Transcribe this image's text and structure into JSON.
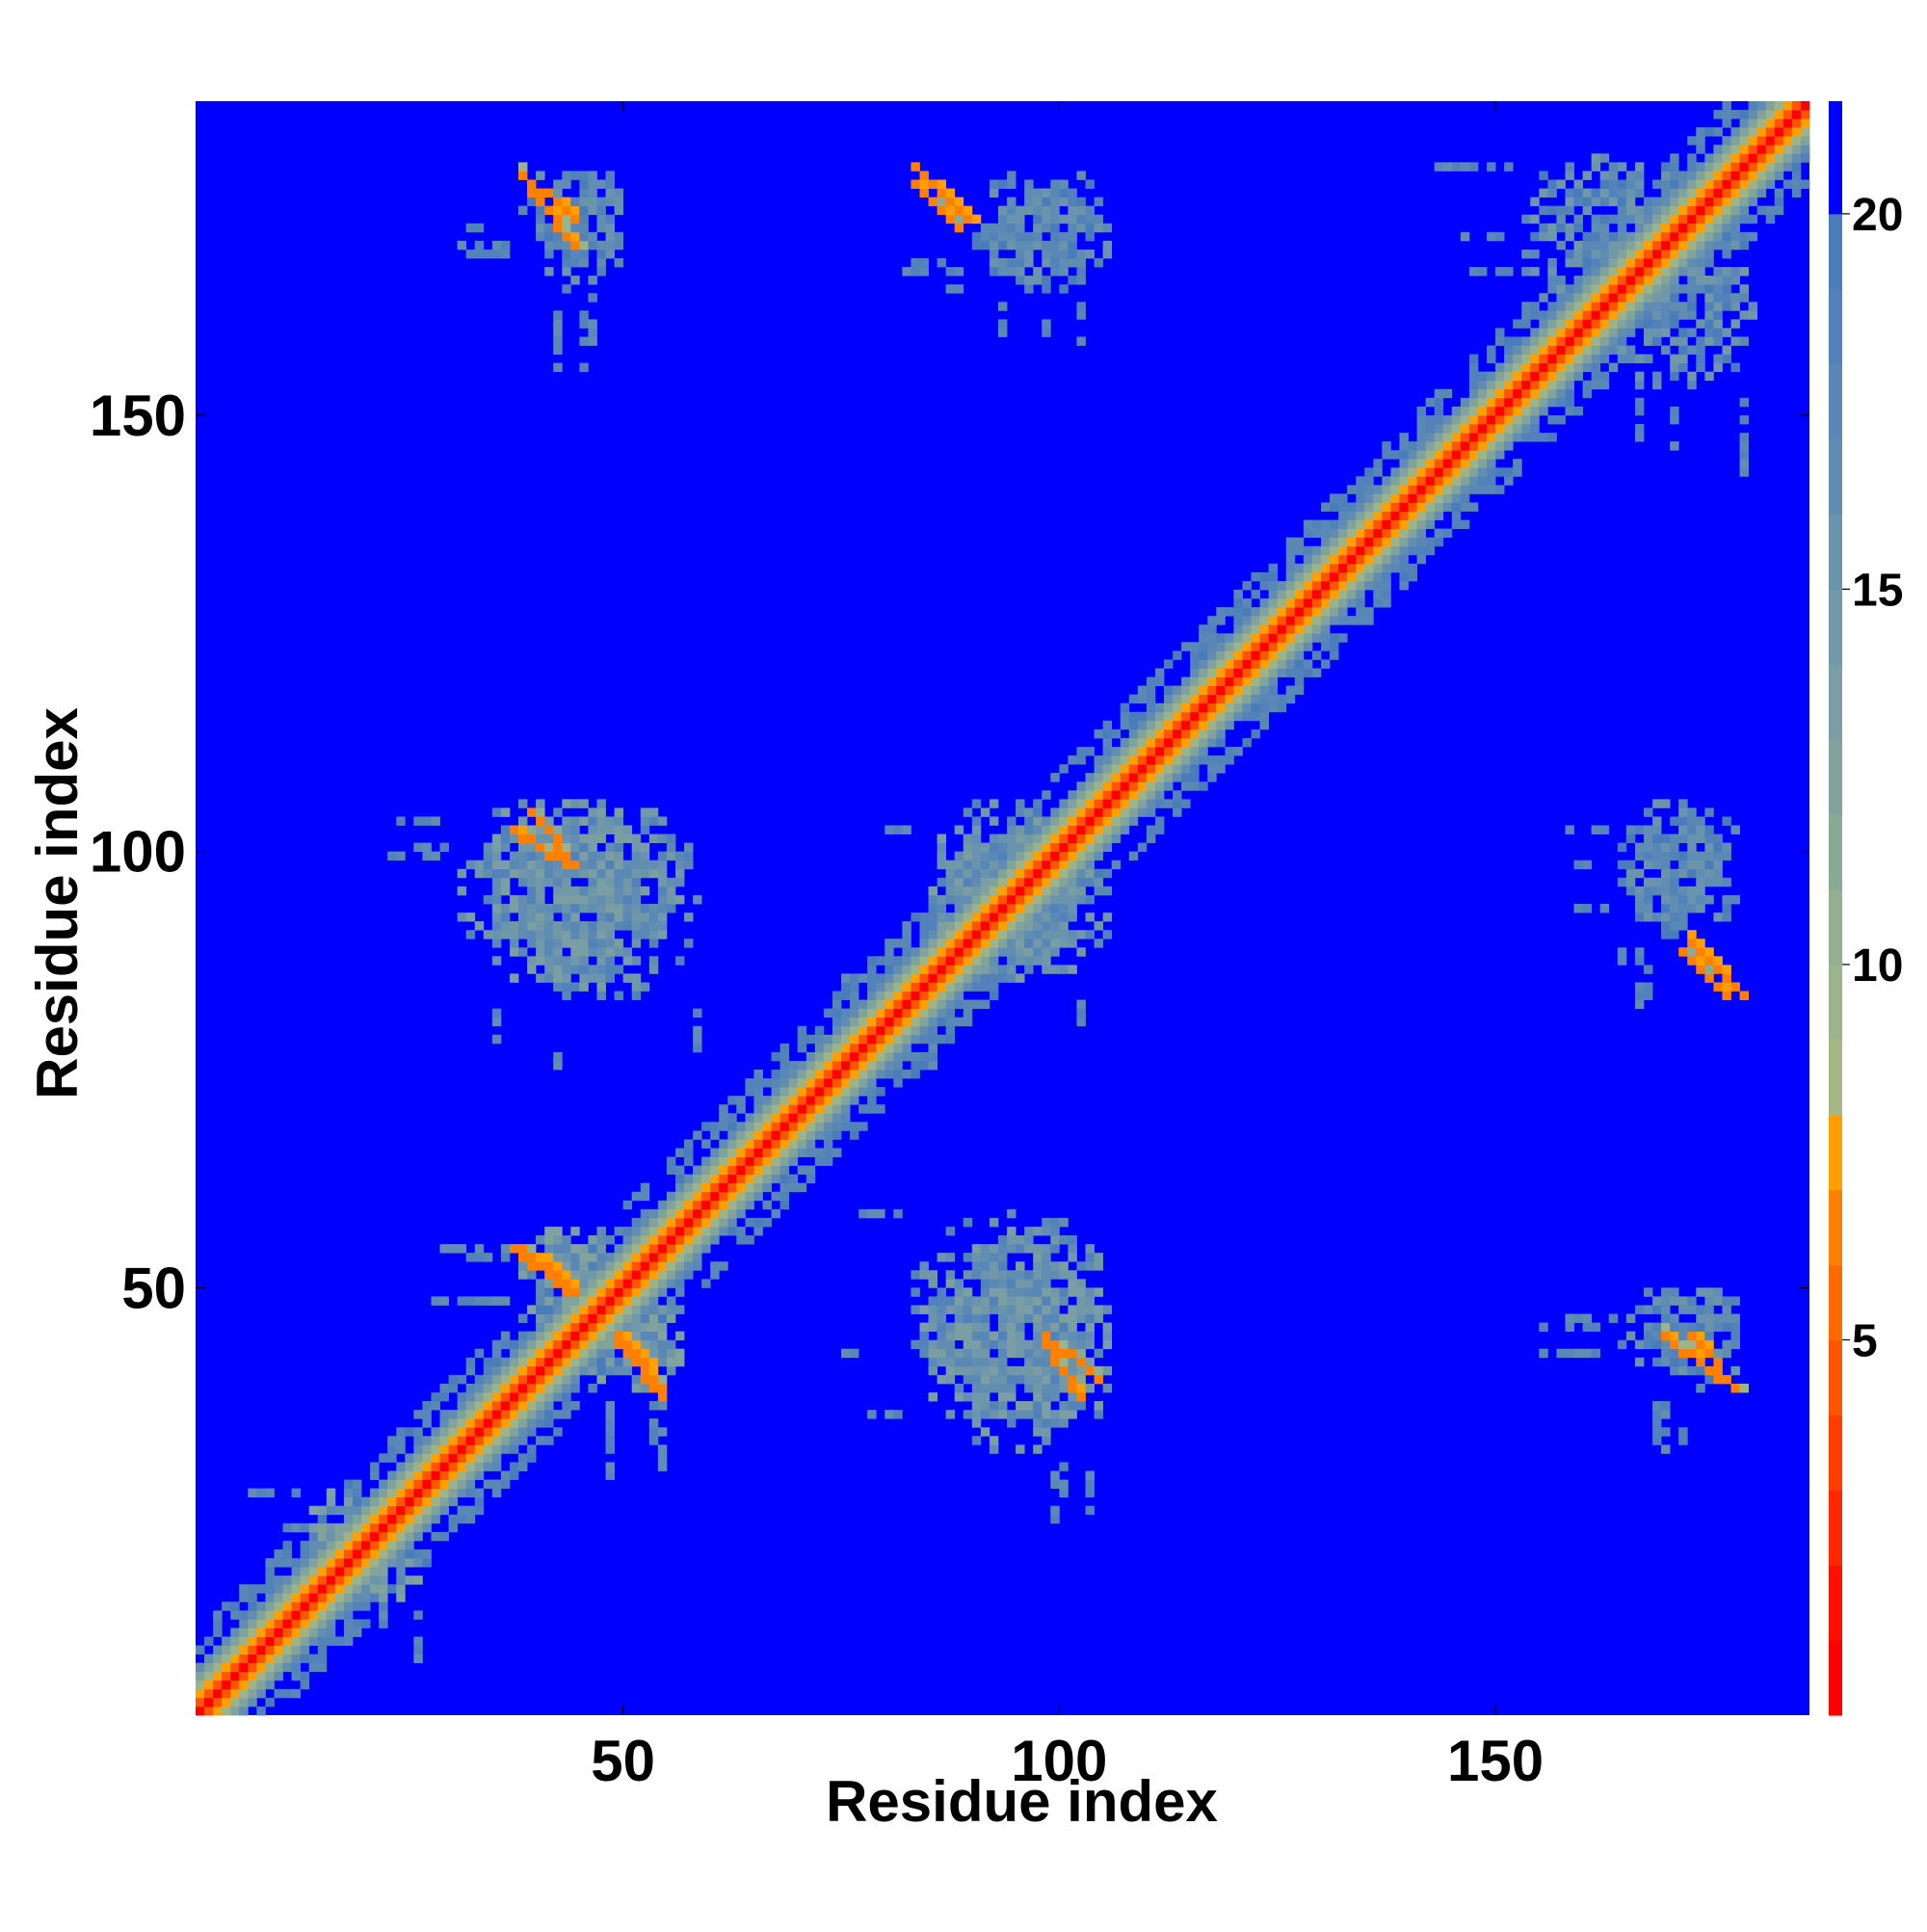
{
  "chart_data": {
    "type": "heatmap",
    "title": "",
    "xlabel": "Residue index",
    "ylabel": "Residue index",
    "xlim": [
      1,
      185
    ],
    "ylim": [
      1,
      185
    ],
    "x_ticks": [
      50,
      100,
      150
    ],
    "y_ticks": [
      50,
      100,
      150
    ],
    "grid": false,
    "legend": "none",
    "colorbar": {
      "position": "right",
      "range": [
        0,
        21.5
      ],
      "ticks": [
        5,
        10,
        15,
        20
      ],
      "levels": [
        {
          "min": 0,
          "max": 1,
          "color": "#ff0000"
        },
        {
          "min": 1,
          "max": 2,
          "color": "#ff0f00"
        },
        {
          "min": 2,
          "max": 3,
          "color": "#ff2600"
        },
        {
          "min": 3,
          "max": 4,
          "color": "#ff3d00"
        },
        {
          "min": 4,
          "max": 5,
          "color": "#ff5500"
        },
        {
          "min": 5,
          "max": 6,
          "color": "#ff6a00"
        },
        {
          "min": 6,
          "max": 7,
          "color": "#ff8000"
        },
        {
          "min": 7,
          "max": 8,
          "color": "#ffa000"
        },
        {
          "min": 8,
          "max": 9,
          "color": "#a6b684"
        },
        {
          "min": 9,
          "max": 10,
          "color": "#9cb48c"
        },
        {
          "min": 10,
          "max": 11,
          "color": "#94ae90"
        },
        {
          "min": 11,
          "max": 12,
          "color": "#8aa996"
        },
        {
          "min": 12,
          "max": 13,
          "color": "#82a39c"
        },
        {
          "min": 13,
          "max": 14,
          "color": "#7a9ea3"
        },
        {
          "min": 14,
          "max": 15,
          "color": "#7198a8"
        },
        {
          "min": 15,
          "max": 16,
          "color": "#6a93ad"
        },
        {
          "min": 16,
          "max": 17,
          "color": "#618db2"
        },
        {
          "min": 17,
          "max": 18,
          "color": "#5a88b6"
        },
        {
          "min": 18,
          "max": 19,
          "color": "#5282b9"
        },
        {
          "min": 19,
          "max": 20,
          "color": "#4a7cbc"
        },
        {
          "min": 20,
          "max": 21.5,
          "color": "#0000ff"
        }
      ]
    },
    "description_of_values": "Pairwise residue distance map; symmetric about the diagonal. Cells beyond 20 are saturated blue.",
    "diagonal": {
      "value_on_diagonal": 0.5,
      "halo": [
        [
          1,
          4
        ],
        [
          2,
          7
        ],
        [
          3,
          9
        ],
        [
          4,
          12
        ],
        [
          5,
          16
        ]
      ]
    },
    "contact_blobs": [
      {
        "cx": 45,
        "cy": 50,
        "w": 16,
        "h": 14,
        "value": 12
      },
      {
        "cx": 19,
        "cy": 21,
        "w": 12,
        "h": 12,
        "value": 12
      },
      {
        "cx": 41,
        "cy": 95,
        "w": 22,
        "h": 22,
        "value": 13
      },
      {
        "cx": 93,
        "cy": 95,
        "w": 18,
        "h": 22,
        "value": 13
      },
      {
        "cx": 94,
        "cy": 47,
        "w": 24,
        "h": 24,
        "value": 13
      },
      {
        "cx": 44,
        "cy": 173,
        "w": 14,
        "h": 10,
        "value": 15
      },
      {
        "cx": 98,
        "cy": 171,
        "w": 18,
        "h": 14,
        "value": 15
      },
      {
        "cx": 170,
        "cy": 97,
        "w": 14,
        "h": 12,
        "value": 15
      },
      {
        "cx": 170,
        "cy": 45,
        "w": 16,
        "h": 10,
        "value": 15
      },
      {
        "cx": 162,
        "cy": 170,
        "w": 20,
        "h": 20,
        "value": 14
      }
    ],
    "close_contacts": [
      {
        "from": [
          37,
          102
        ],
        "to": [
          43,
          98
        ],
        "value": 6
      },
      {
        "from": [
          37,
          54
        ],
        "to": [
          43,
          49
        ],
        "value": 6
      },
      {
        "from": [
          49,
          44
        ],
        "to": [
          54,
          38
        ],
        "value": 6
      },
      {
        "from": [
          98,
          44
        ],
        "to": [
          104,
          39
        ],
        "value": 6
      },
      {
        "from": [
          88,
          89
        ],
        "to": [
          96,
          96
        ],
        "value": 6
      },
      {
        "from": [
          38,
          177
        ],
        "to": [
          44,
          172
        ],
        "value": 6
      },
      {
        "from": [
          83,
          178
        ],
        "to": [
          89,
          172
        ],
        "value": 6
      },
      {
        "from": [
          171,
          88
        ],
        "to": [
          176,
          83
        ],
        "value": 6
      },
      {
        "from": [
          169,
          44
        ],
        "to": [
          175,
          39
        ],
        "value": 6
      }
    ]
  }
}
